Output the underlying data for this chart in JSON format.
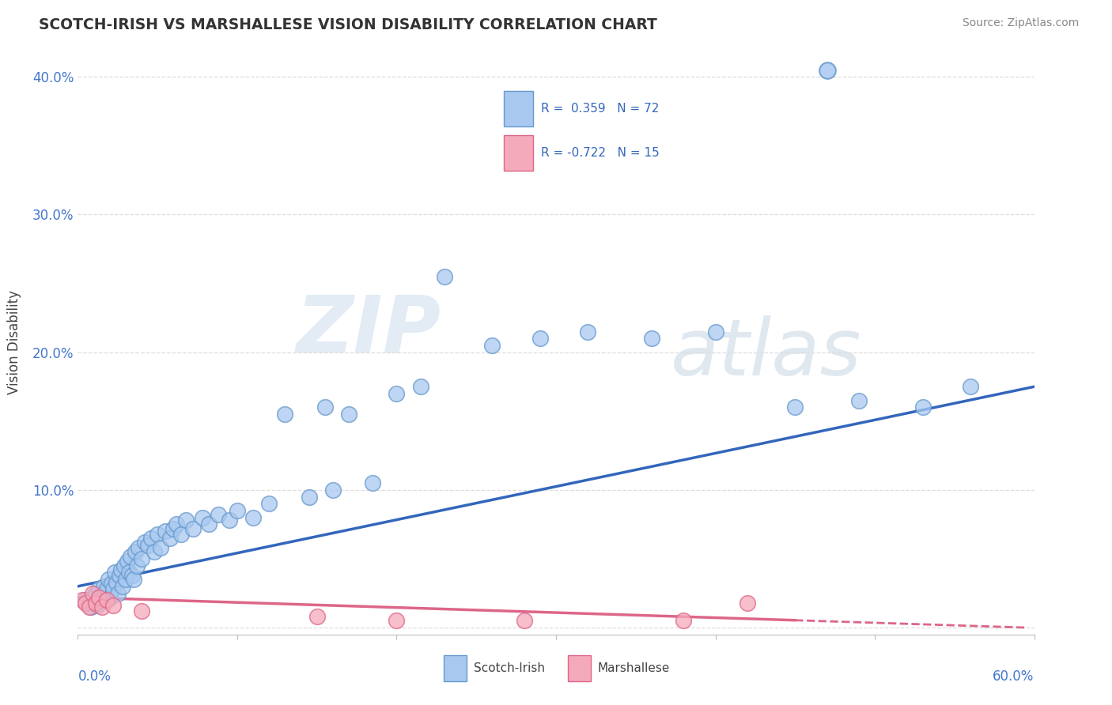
{
  "title": "SCOTCH-IRISH VS MARSHALLESE VISION DISABILITY CORRELATION CHART",
  "source": "Source: ZipAtlas.com",
  "ylabel": "Vision Disability",
  "xlim": [
    0.0,
    0.6
  ],
  "ylim": [
    -0.005,
    0.42
  ],
  "yticks": [
    0.0,
    0.1,
    0.2,
    0.3,
    0.4
  ],
  "ytick_labels": [
    "",
    "10.0%",
    "20.0%",
    "30.0%",
    "40.0%"
  ],
  "blue_marker_color": "#A8C8F0",
  "blue_edge_color": "#6699CC",
  "blue_line_color": "#3366BB",
  "pink_marker_color": "#F5AABB",
  "pink_edge_color": "#DD6688",
  "pink_line_color": "#DD6688",
  "legend_blue_fill": "#A8C8F0",
  "legend_blue_edge": "#6699CC",
  "legend_pink_fill": "#F5AABB",
  "legend_pink_edge": "#DD6688",
  "blue_scatter_x": [
    0.005,
    0.007,
    0.008,
    0.009,
    0.01,
    0.011,
    0.012,
    0.013,
    0.014,
    0.015,
    0.016,
    0.017,
    0.018,
    0.019,
    0.02,
    0.021,
    0.022,
    0.023,
    0.024,
    0.025,
    0.026,
    0.027,
    0.028,
    0.029,
    0.03,
    0.031,
    0.032,
    0.033,
    0.034,
    0.035,
    0.036,
    0.037,
    0.038,
    0.04,
    0.042,
    0.044,
    0.046,
    0.048,
    0.05,
    0.052,
    0.055,
    0.058,
    0.06,
    0.062,
    0.065,
    0.068,
    0.072,
    0.078,
    0.082,
    0.088,
    0.095,
    0.1,
    0.11,
    0.12,
    0.13,
    0.145,
    0.155,
    0.16,
    0.17,
    0.185,
    0.2,
    0.215,
    0.23,
    0.26,
    0.29,
    0.32,
    0.36,
    0.4,
    0.45,
    0.49,
    0.53,
    0.56
  ],
  "blue_scatter_y": [
    0.02,
    0.018,
    0.015,
    0.022,
    0.018,
    0.025,
    0.016,
    0.028,
    0.02,
    0.022,
    0.03,
    0.025,
    0.028,
    0.035,
    0.022,
    0.032,
    0.028,
    0.04,
    0.033,
    0.025,
    0.038,
    0.042,
    0.03,
    0.045,
    0.035,
    0.048,
    0.04,
    0.052,
    0.038,
    0.035,
    0.055,
    0.045,
    0.058,
    0.05,
    0.062,
    0.06,
    0.065,
    0.055,
    0.068,
    0.058,
    0.07,
    0.065,
    0.072,
    0.075,
    0.068,
    0.078,
    0.072,
    0.08,
    0.075,
    0.082,
    0.078,
    0.085,
    0.08,
    0.09,
    0.155,
    0.095,
    0.16,
    0.1,
    0.155,
    0.105,
    0.17,
    0.175,
    0.255,
    0.205,
    0.21,
    0.215,
    0.21,
    0.215,
    0.16,
    0.165,
    0.16,
    0.175
  ],
  "pink_scatter_x": [
    0.003,
    0.005,
    0.007,
    0.009,
    0.011,
    0.013,
    0.015,
    0.018,
    0.022,
    0.04,
    0.15,
    0.2,
    0.28,
    0.38,
    0.42
  ],
  "pink_scatter_y": [
    0.02,
    0.018,
    0.015,
    0.025,
    0.018,
    0.022,
    0.015,
    0.02,
    0.016,
    0.012,
    0.008,
    0.005,
    0.005,
    0.005,
    0.018
  ],
  "blue_trend_x": [
    0.0,
    0.6
  ],
  "blue_trend_y": [
    0.03,
    0.175
  ],
  "pink_trend_x": [
    0.0,
    0.595
  ],
  "pink_trend_y": [
    0.022,
    0.0
  ],
  "watermark_zip": "ZIP",
  "watermark_atlas": "atlas",
  "background_color": "#FFFFFF",
  "grid_color": "#DDDDDD",
  "axis_label_color": "#4477CC",
  "title_color": "#333333"
}
